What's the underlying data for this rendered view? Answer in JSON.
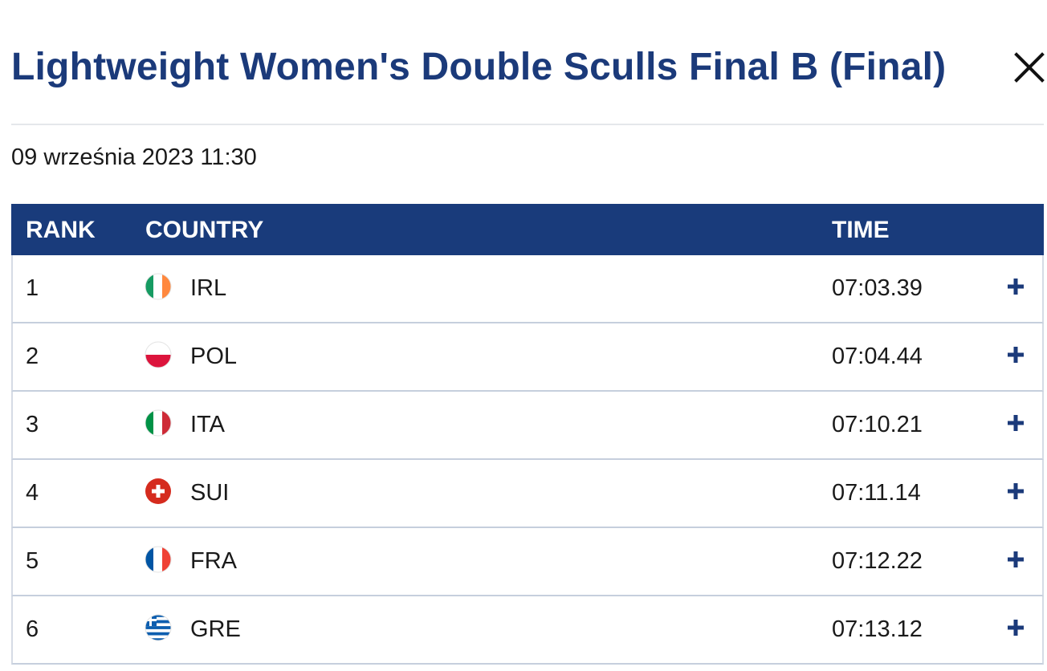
{
  "title": "Lightweight Women's Double Sculls Final B (Final)",
  "close_icon": "close-icon",
  "date": "09 września 2023 11:30",
  "table": {
    "headers": {
      "rank": "RANK",
      "country": "COUNTRY",
      "time": "TIME"
    },
    "rows": [
      {
        "rank": "1",
        "country": "IRL",
        "flag": "ireland-flag-icon",
        "time": "07:03.39"
      },
      {
        "rank": "2",
        "country": "POL",
        "flag": "poland-flag-icon",
        "time": "07:04.44"
      },
      {
        "rank": "3",
        "country": "ITA",
        "flag": "italy-flag-icon",
        "time": "07:10.21"
      },
      {
        "rank": "4",
        "country": "SUI",
        "flag": "switzerland-flag-icon",
        "time": "07:11.14"
      },
      {
        "rank": "5",
        "country": "FRA",
        "flag": "france-flag-icon",
        "time": "07:12.22"
      },
      {
        "rank": "6",
        "country": "GRE",
        "flag": "greece-flag-icon",
        "time": "07:13.12"
      }
    ],
    "expand_icon": "plus-icon"
  },
  "colors": {
    "title": "#1b3a7a",
    "header_bg": "#193b7b",
    "header_text": "#ffffff",
    "row_border": "#c6cfdd",
    "divider": "#e5e7eb"
  }
}
